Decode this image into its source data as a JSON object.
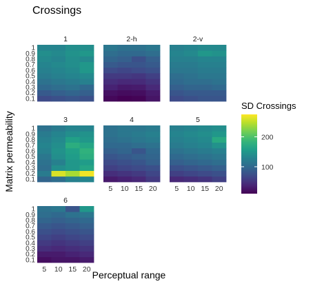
{
  "chart_data": {
    "type": "heatmap",
    "title": "Crossings",
    "xlabel": "Perceptual range",
    "ylabel": "Matrix permeability",
    "x": [
      "5",
      "10",
      "15",
      "20"
    ],
    "y": [
      "0.1",
      "0.2",
      "0.3",
      "0.4",
      "0.5",
      "0.6",
      "0.7",
      "0.8",
      "0.9",
      "1"
    ],
    "legend": {
      "title": "SD Crossings",
      "ticks": [
        100,
        200
      ],
      "range": [
        10,
        275
      ],
      "colormap": "viridis",
      "placement": "right"
    },
    "grid": false,
    "panels": [
      {
        "name": "1",
        "values": [
          [
            70,
            75,
            80,
            75
          ],
          [
            85,
            90,
            95,
            90
          ],
          [
            100,
            105,
            110,
            100
          ],
          [
            110,
            115,
            120,
            125
          ],
          [
            120,
            125,
            130,
            135
          ],
          [
            125,
            130,
            135,
            150
          ],
          [
            130,
            135,
            140,
            150
          ],
          [
            135,
            130,
            140,
            135
          ],
          [
            140,
            135,
            145,
            150
          ],
          [
            130,
            130,
            140,
            140
          ]
        ]
      },
      {
        "name": "2-h",
        "values": [
          [
            15,
            10,
            12,
            25
          ],
          [
            22,
            18,
            20,
            30
          ],
          [
            35,
            28,
            30,
            40
          ],
          [
            45,
            40,
            42,
            50
          ],
          [
            55,
            55,
            52,
            60
          ],
          [
            70,
            65,
            70,
            75
          ],
          [
            85,
            80,
            80,
            85
          ],
          [
            95,
            90,
            75,
            90
          ],
          [
            105,
            100,
            100,
            105
          ],
          [
            115,
            110,
            110,
            115
          ]
        ]
      },
      {
        "name": "2-v",
        "values": [
          [
            70,
            75,
            80,
            80
          ],
          [
            80,
            85,
            85,
            85
          ],
          [
            90,
            95,
            95,
            100
          ],
          [
            100,
            105,
            105,
            110
          ],
          [
            105,
            110,
            115,
            115
          ],
          [
            115,
            115,
            120,
            120
          ],
          [
            120,
            120,
            125,
            125
          ],
          [
            125,
            125,
            130,
            130
          ],
          [
            130,
            135,
            150,
            145
          ],
          [
            125,
            130,
            135,
            135
          ]
        ]
      },
      {
        "name": "3",
        "values": [
          [
            95,
            105,
            125,
            130
          ],
          [
            120,
            260,
            240,
            270
          ],
          [
            105,
            140,
            150,
            165
          ],
          [
            110,
            125,
            150,
            155
          ],
          [
            115,
            140,
            155,
            175
          ],
          [
            125,
            145,
            160,
            180
          ],
          [
            130,
            140,
            175,
            165
          ],
          [
            125,
            135,
            160,
            150
          ],
          [
            120,
            130,
            140,
            145
          ],
          [
            110,
            120,
            130,
            130
          ]
        ]
      },
      {
        "name": "4",
        "values": [
          [
            30,
            35,
            40,
            55
          ],
          [
            45,
            50,
            55,
            65
          ],
          [
            60,
            65,
            70,
            75
          ],
          [
            70,
            75,
            80,
            90
          ],
          [
            80,
            85,
            90,
            95
          ],
          [
            90,
            95,
            80,
            100
          ],
          [
            100,
            100,
            105,
            110
          ],
          [
            105,
            110,
            115,
            120
          ],
          [
            110,
            115,
            120,
            125
          ],
          [
            110,
            115,
            115,
            120
          ]
        ]
      },
      {
        "name": "5",
        "values": [
          [
            40,
            45,
            50,
            60
          ],
          [
            60,
            65,
            70,
            75
          ],
          [
            75,
            80,
            85,
            90
          ],
          [
            90,
            95,
            100,
            105
          ],
          [
            100,
            105,
            110,
            115
          ],
          [
            110,
            115,
            120,
            125
          ],
          [
            120,
            125,
            130,
            145
          ],
          [
            125,
            130,
            135,
            170
          ],
          [
            130,
            135,
            140,
            150
          ],
          [
            125,
            130,
            135,
            140
          ]
        ]
      },
      {
        "name": "6",
        "values": [
          [
            20,
            25,
            25,
            30
          ],
          [
            30,
            30,
            35,
            40
          ],
          [
            45,
            40,
            45,
            50
          ],
          [
            55,
            50,
            55,
            60
          ],
          [
            65,
            60,
            65,
            70
          ],
          [
            75,
            70,
            75,
            80
          ],
          [
            85,
            80,
            85,
            90
          ],
          [
            95,
            90,
            95,
            100
          ],
          [
            105,
            100,
            110,
            115
          ],
          [
            110,
            115,
            80,
            150
          ]
        ]
      }
    ]
  }
}
